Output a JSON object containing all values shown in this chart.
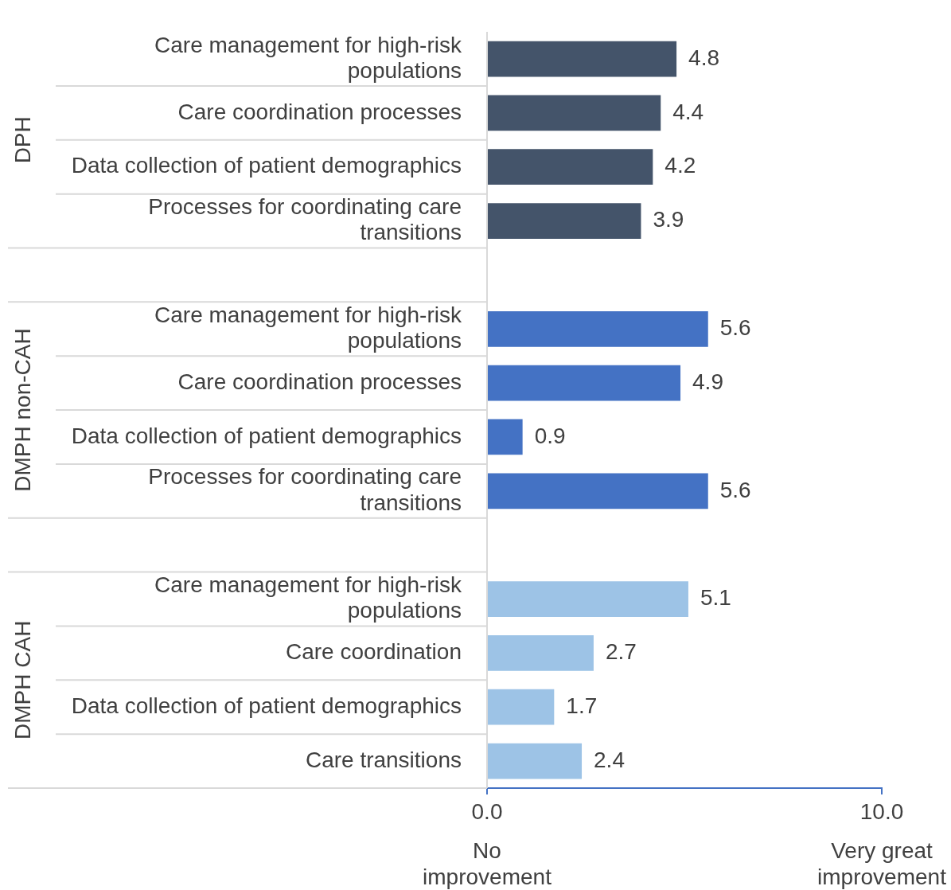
{
  "chart_data": {
    "type": "bar",
    "orientation": "horizontal",
    "data_labels": true,
    "categories": [
      "Care management for high-risk populations",
      "Care coordination processes",
      "Data collection of patient demographics",
      "Processes for coordinating care transitions",
      null,
      "Care management for high-risk populations",
      "Care coordination processes",
      "Data collection of patient demographics",
      "Processes for coordinating care transitions",
      null,
      "Care management for high-risk populations",
      "Care coordination",
      "Data collection of patient demographics",
      "Care transitions"
    ],
    "values": [
      4.8,
      4.4,
      4.2,
      3.9,
      null,
      5.6,
      4.9,
      0.9,
      5.6,
      null,
      5.1,
      2.7,
      1.7,
      2.4
    ],
    "colors": [
      "#44546a",
      "#44546a",
      "#44546a",
      "#44546a",
      "#44546a",
      "#4472c4",
      "#4472c4",
      "#4472c4",
      "#4472c4",
      "#4472c4",
      "#9dc3e6",
      "#9dc3e6",
      "#9dc3e6",
      "#9dc3e6"
    ],
    "xlim": [
      0,
      10
    ],
    "xticks": [
      {
        "value": 0,
        "label": "0.0"
      },
      {
        "value": 10,
        "label": "10.0"
      }
    ],
    "annotations": [
      "DPH",
      "DMPH non-CAH",
      "DMPH CAH",
      "No improvement",
      "Very great improvement"
    ]
  }
}
